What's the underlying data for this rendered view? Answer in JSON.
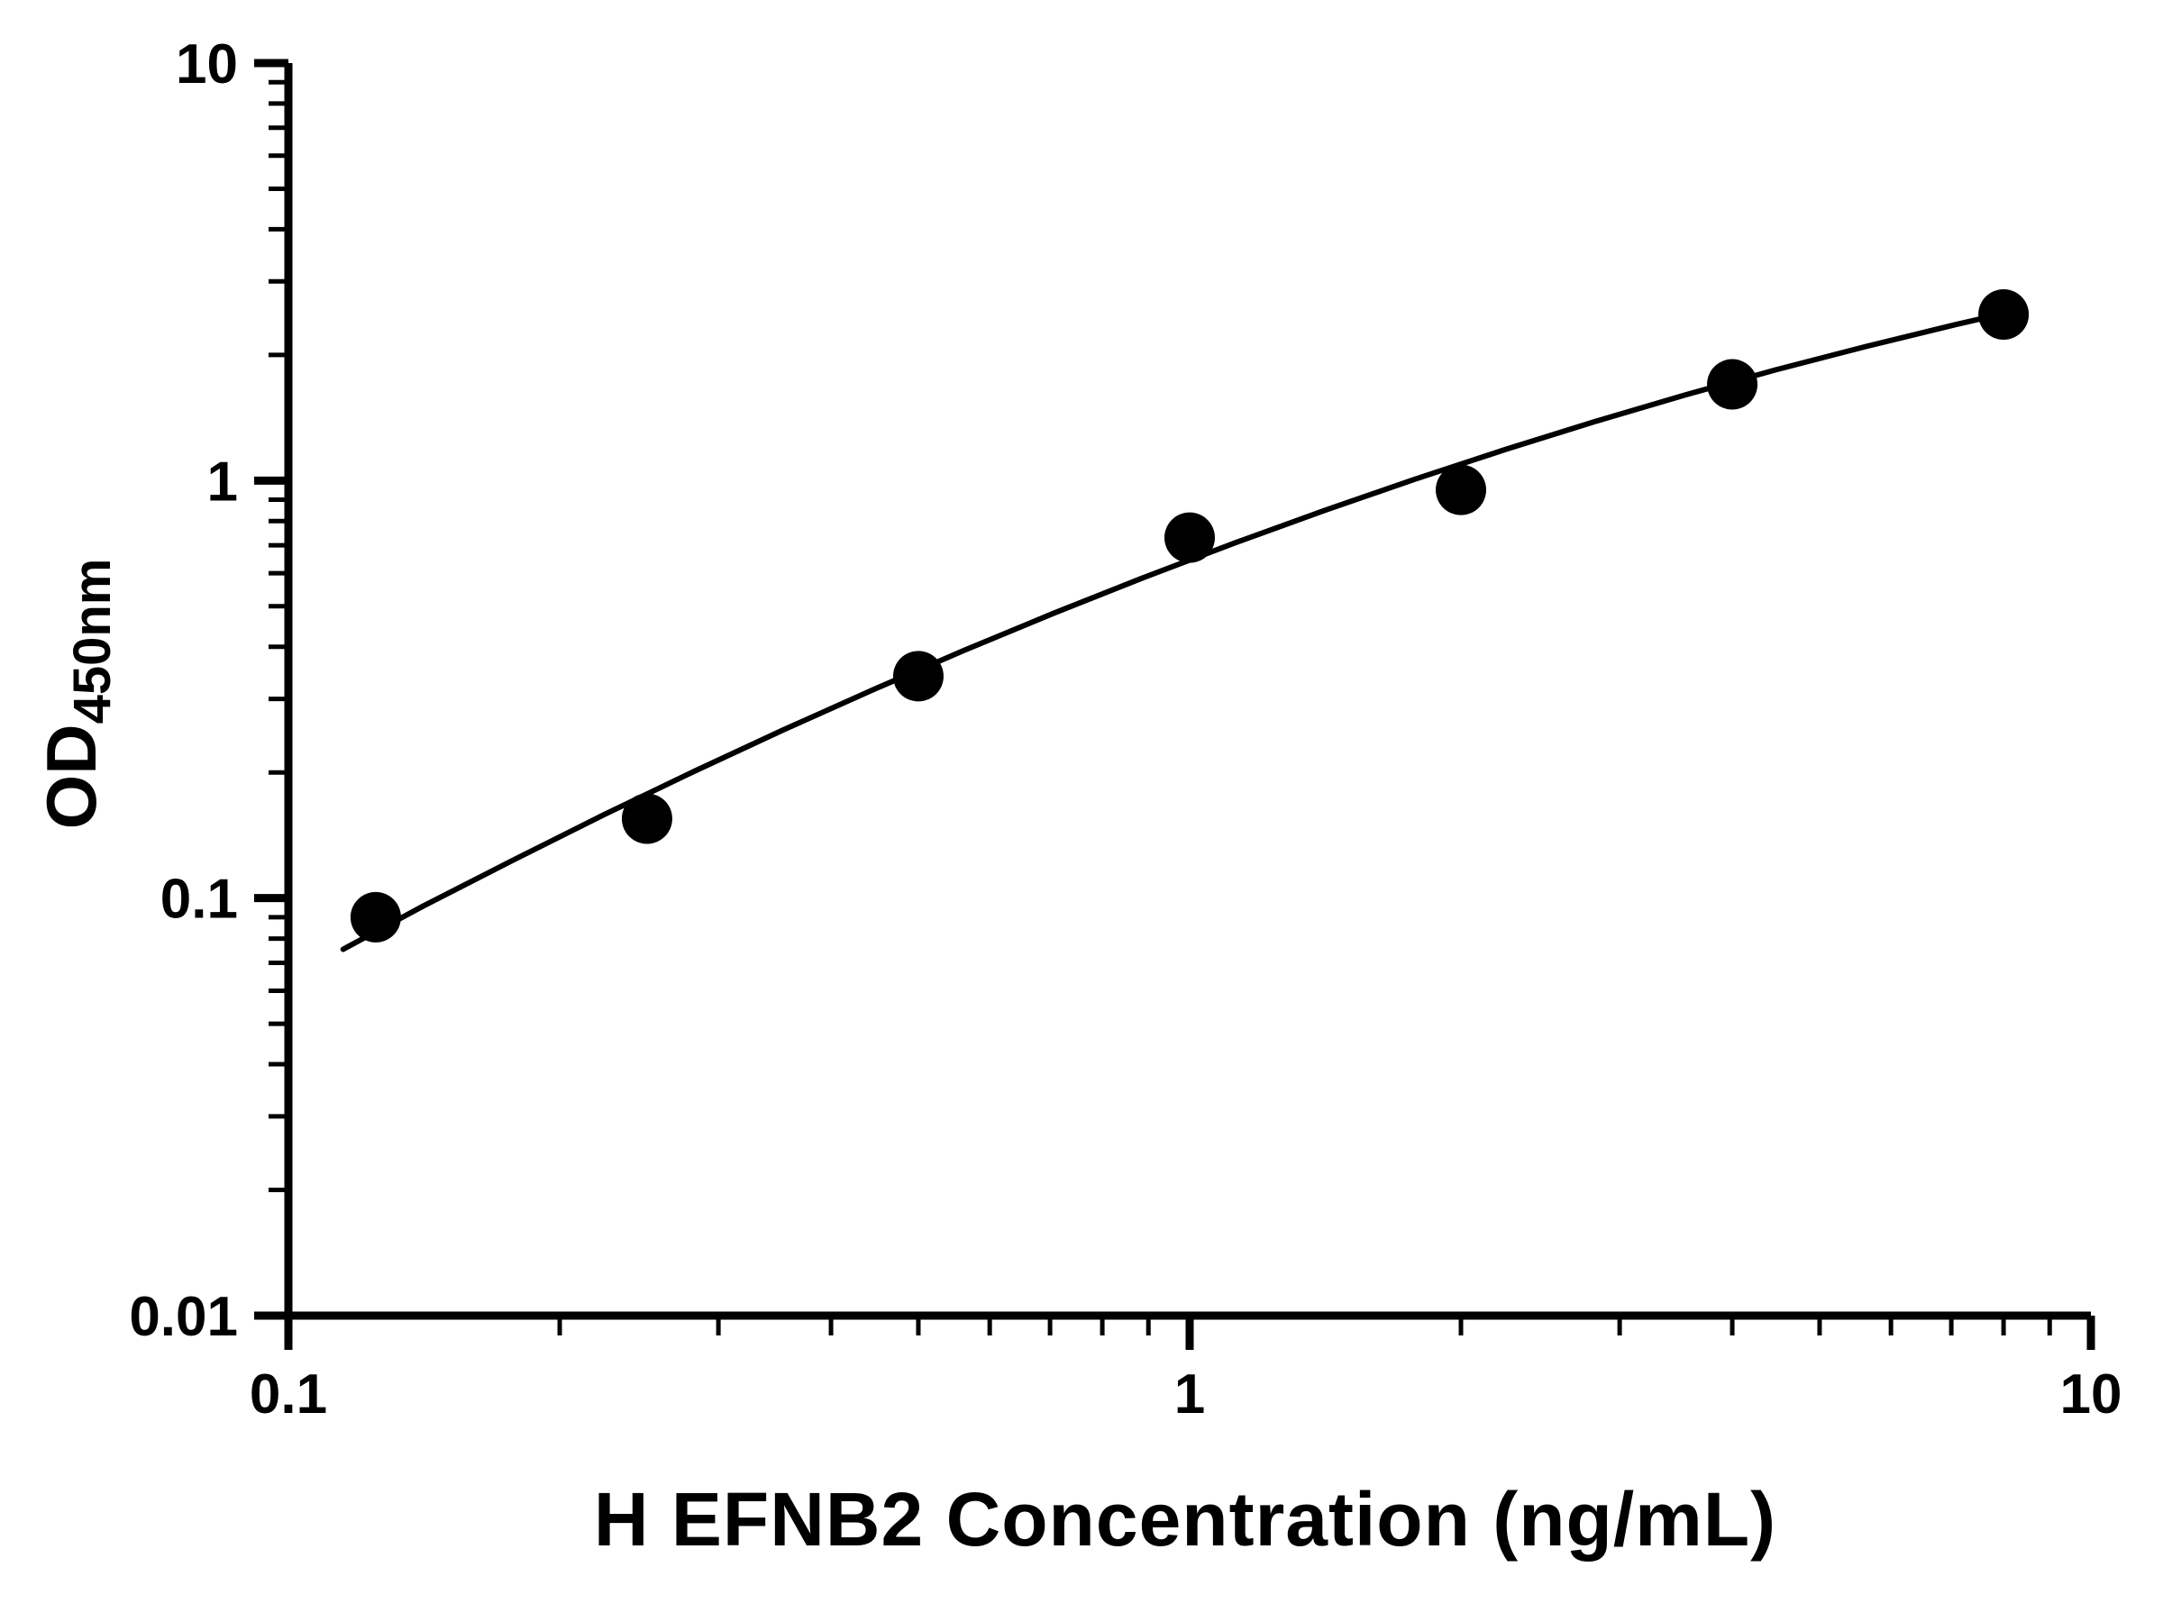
{
  "chart_data": {
    "type": "scatter",
    "title": "",
    "xlabel": "H EFNB2 Concentration (ng/mL)",
    "ylabel_main": "OD",
    "ylabel_sub": "450nm",
    "x_scale": "log",
    "y_scale": "log",
    "xlim": [
      0.1,
      10
    ],
    "ylim": [
      0.01,
      10
    ],
    "grid": false,
    "legend": false,
    "x_ticks": [
      {
        "value": 0.1,
        "label": "0.1"
      },
      {
        "value": 1,
        "label": "1"
      },
      {
        "value": 10,
        "label": "10"
      }
    ],
    "y_ticks": [
      {
        "value": 0.01,
        "label": "0.01"
      },
      {
        "value": 0.1,
        "label": "0.1"
      },
      {
        "value": 1,
        "label": "1"
      },
      {
        "value": 10,
        "label": "10"
      }
    ],
    "series": [
      {
        "name": "standard-curve-points",
        "type": "scatter",
        "x": [
          0.125,
          0.25,
          0.5,
          1,
          2,
          4,
          8
        ],
        "y": [
          0.09,
          0.155,
          0.34,
          0.73,
          0.95,
          1.7,
          2.5
        ]
      }
    ],
    "fit_curve": {
      "name": "fitted-curve",
      "x": [
        0.115,
        0.141,
        0.178,
        0.224,
        0.282,
        0.355,
        0.447,
        0.562,
        0.708,
        0.891,
        1.122,
        1.413,
        1.778,
        2.239,
        2.818,
        3.548,
        4.467,
        5.623,
        7.079,
        8.0
      ],
      "y": [
        0.0754,
        0.0956,
        0.1236,
        0.1584,
        0.2012,
        0.2535,
        0.3166,
        0.3922,
        0.4819,
        0.5868,
        0.7087,
        0.8487,
        1.0078,
        1.1866,
        1.3852,
        1.6033,
        1.8408,
        2.0946,
        2.3643,
        2.512
      ]
    },
    "colors": {
      "marker": "#000000",
      "line": "#000000",
      "axis": "#000000",
      "text": "#000000",
      "background": "#ffffff"
    }
  }
}
